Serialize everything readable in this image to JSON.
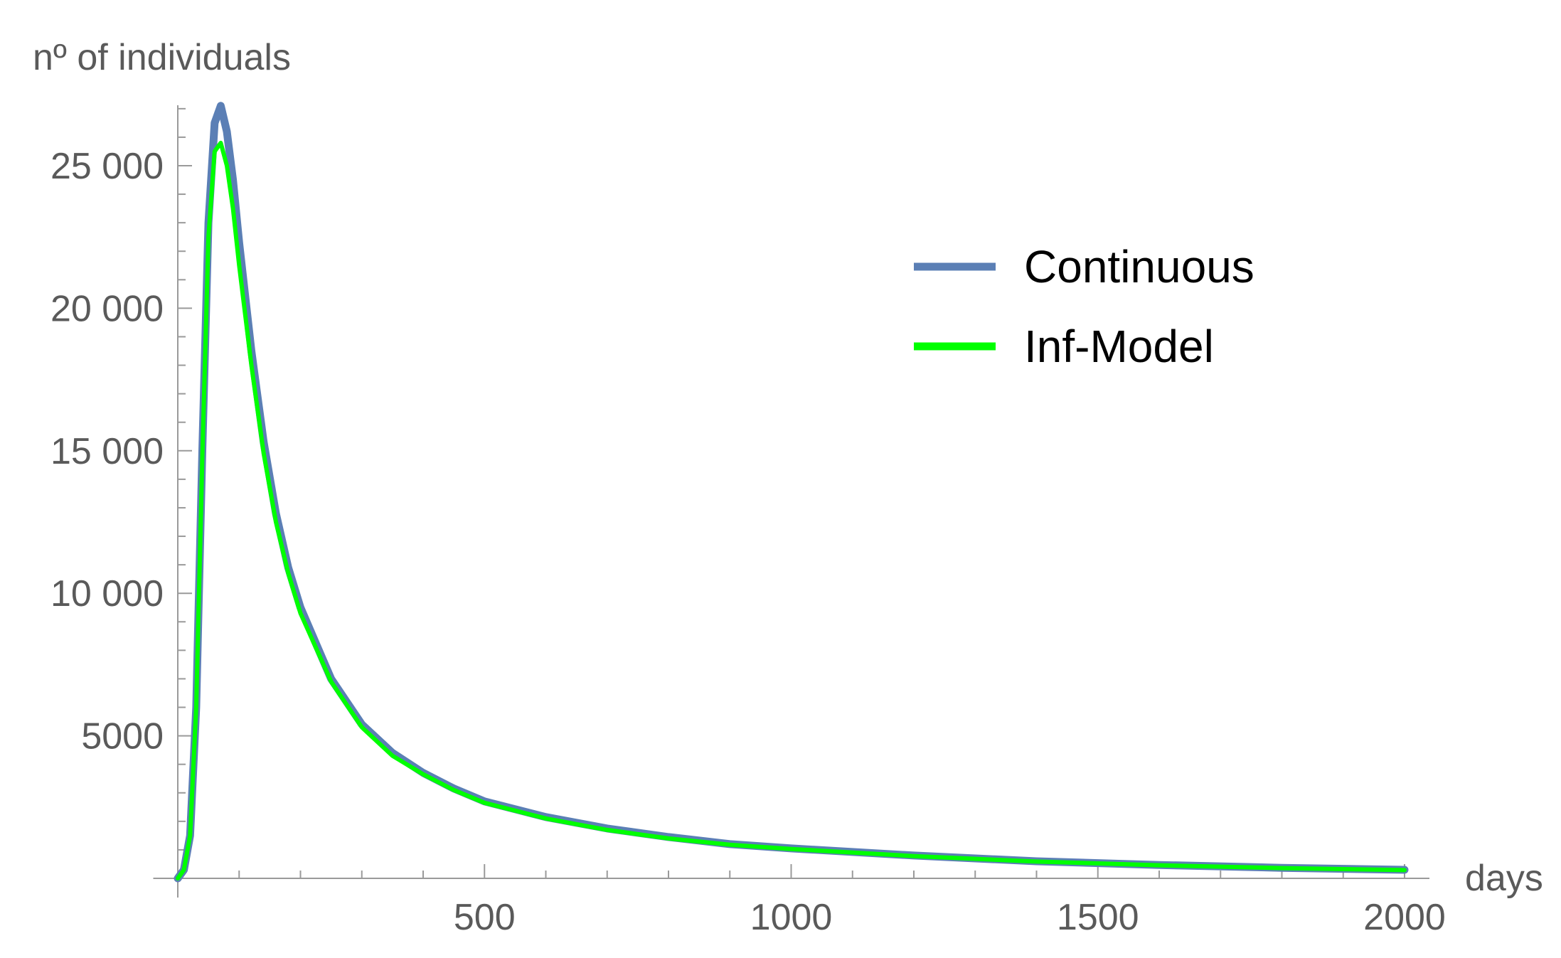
{
  "chart_data": {
    "type": "line",
    "title": "",
    "xlabel": "days",
    "ylabel": "nº of individuals",
    "xlim": [
      -40,
      2000
    ],
    "ylim": [
      -200,
      27200
    ],
    "x_ticks": [
      500,
      1000,
      1500,
      2000
    ],
    "x_tick_labels": [
      "500",
      "1000",
      "1500",
      "2000"
    ],
    "y_ticks": [
      5000,
      10000,
      15000,
      20000,
      25000
    ],
    "y_tick_labels": [
      "5000",
      "10 000",
      "15 000",
      "20 000",
      "25 000"
    ],
    "grid": false,
    "legend_position": "top-right",
    "series": [
      {
        "name": "Continuous",
        "color": "#5b7fb5",
        "x": [
          0,
          10,
          20,
          30,
          40,
          50,
          60,
          70,
          80,
          90,
          100,
          120,
          140,
          160,
          180,
          200,
          250,
          300,
          350,
          400,
          450,
          500,
          600,
          700,
          800,
          900,
          1000,
          1200,
          1400,
          1600,
          1800,
          2000
        ],
        "values": [
          0,
          300,
          1500,
          6000,
          15000,
          23000,
          26500,
          27100,
          26200,
          24500,
          22300,
          18500,
          15300,
          12800,
          10900,
          9500,
          7000,
          5400,
          4400,
          3700,
          3150,
          2700,
          2150,
          1750,
          1450,
          1200,
          1050,
          800,
          600,
          470,
          370,
          300
        ]
      },
      {
        "name": "Inf-Model",
        "color": "#00ff00",
        "x": [
          0,
          10,
          20,
          30,
          40,
          50,
          60,
          70,
          80,
          90,
          100,
          120,
          140,
          160,
          180,
          200,
          250,
          300,
          350,
          400,
          450,
          500,
          600,
          700,
          800,
          900,
          1000,
          1200,
          1400,
          1600,
          1800,
          2000
        ],
        "values": [
          0,
          300,
          1500,
          6000,
          14800,
          22500,
          25500,
          25800,
          25000,
          23500,
          21500,
          18000,
          14900,
          12500,
          10700,
          9300,
          6900,
          5300,
          4300,
          3650,
          3100,
          2650,
          2100,
          1700,
          1400,
          1180,
          1030,
          780,
          590,
          460,
          360,
          290
        ]
      }
    ]
  }
}
